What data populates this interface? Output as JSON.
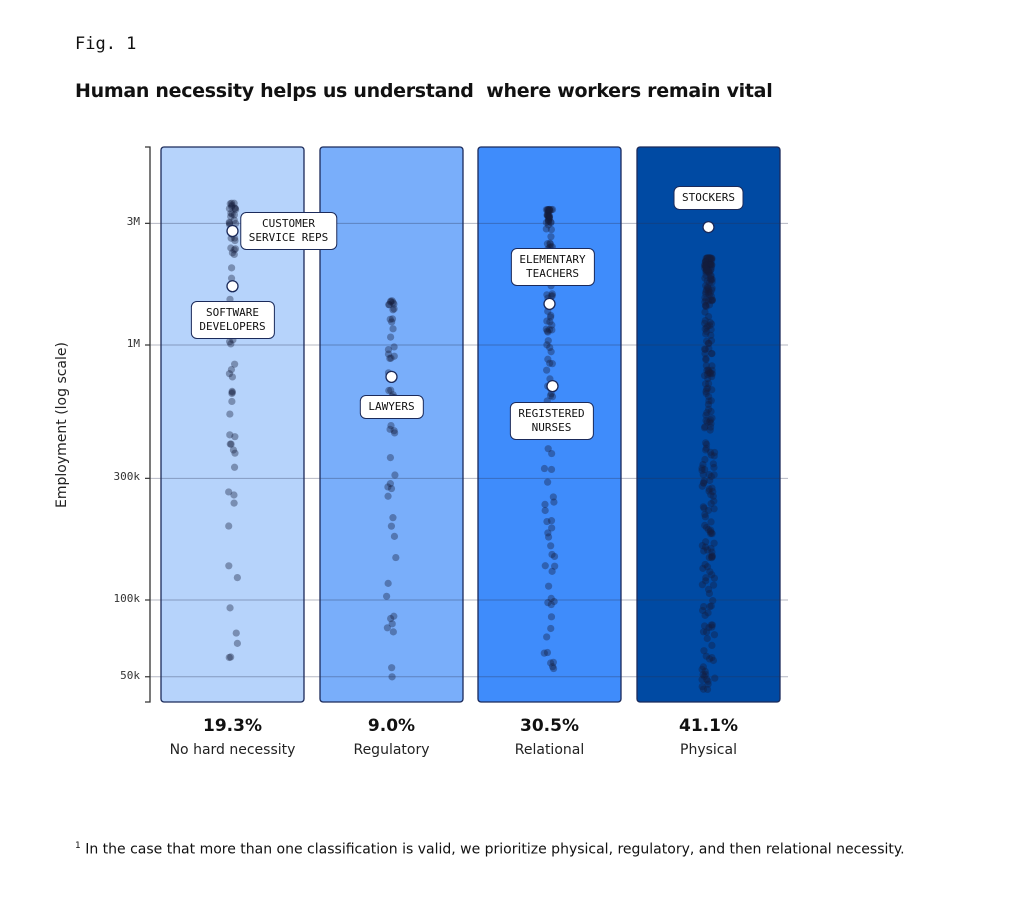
{
  "figure": {
    "label": "Fig. 1",
    "title": "Human necessity helps us understand  where workers remain vital",
    "footnote_marker": "1",
    "footnote": "In the case that more than one classification is valid, we prioritize physical, regulatory, and then relational necessity."
  },
  "chart_data": {
    "type": "scatter",
    "subtype": "strip-plot",
    "title": "Human necessity helps us understand  where workers remain vital",
    "xlabel": "",
    "ylabel": "Employment (log scale)",
    "yscale": "log",
    "ylim": [
      40000,
      5000000
    ],
    "yticks": [
      {
        "value": 50000,
        "label": "50k"
      },
      {
        "value": 100000,
        "label": "100k"
      },
      {
        "value": 300000,
        "label": "300k"
      },
      {
        "value": 1000000,
        "label": "1M"
      },
      {
        "value": 3000000,
        "label": "3M"
      }
    ],
    "grid": true,
    "legend": "none",
    "categories": [
      "No hard necessity",
      "Regulatory",
      "Relational",
      "Physical"
    ],
    "series": [
      {
        "name": "No hard necessity",
        "share_label": "19.3%",
        "share": 19.3,
        "color": "#b6d3fb"
      },
      {
        "name": "Regulatory",
        "share_label": "9.0%",
        "share": 9.0,
        "color": "#79aefa"
      },
      {
        "name": "Relational",
        "share_label": "30.5%",
        "share": 30.5,
        "color": "#3f8cfb"
      },
      {
        "name": "Physical",
        "share_label": "41.1%",
        "share": 41.1,
        "color": "#004aa3"
      }
    ],
    "annotations": [
      {
        "category": "No hard necessity",
        "label": "CUSTOMER\nSERVICE REPS",
        "value": 2800000
      },
      {
        "category": "No hard necessity",
        "label": "SOFTWARE\nDEVELOPERS",
        "value": 1700000
      },
      {
        "category": "Regulatory",
        "label": "LAWYERS",
        "value": 750000
      },
      {
        "category": "Relational",
        "label": "ELEMENTARY\nTEACHERS",
        "value": 1450000
      },
      {
        "category": "Relational",
        "label": "REGISTERED\nNURSES",
        "value": 690000
      },
      {
        "category": "Physical",
        "label": "STOCKERS",
        "value": 2900000
      }
    ]
  },
  "colors": {
    "border": "#1b2a5a",
    "gridline": "rgba(40,50,80,0.35)",
    "dot": "rgba(20,30,60,0.38)",
    "text": "#111111"
  }
}
